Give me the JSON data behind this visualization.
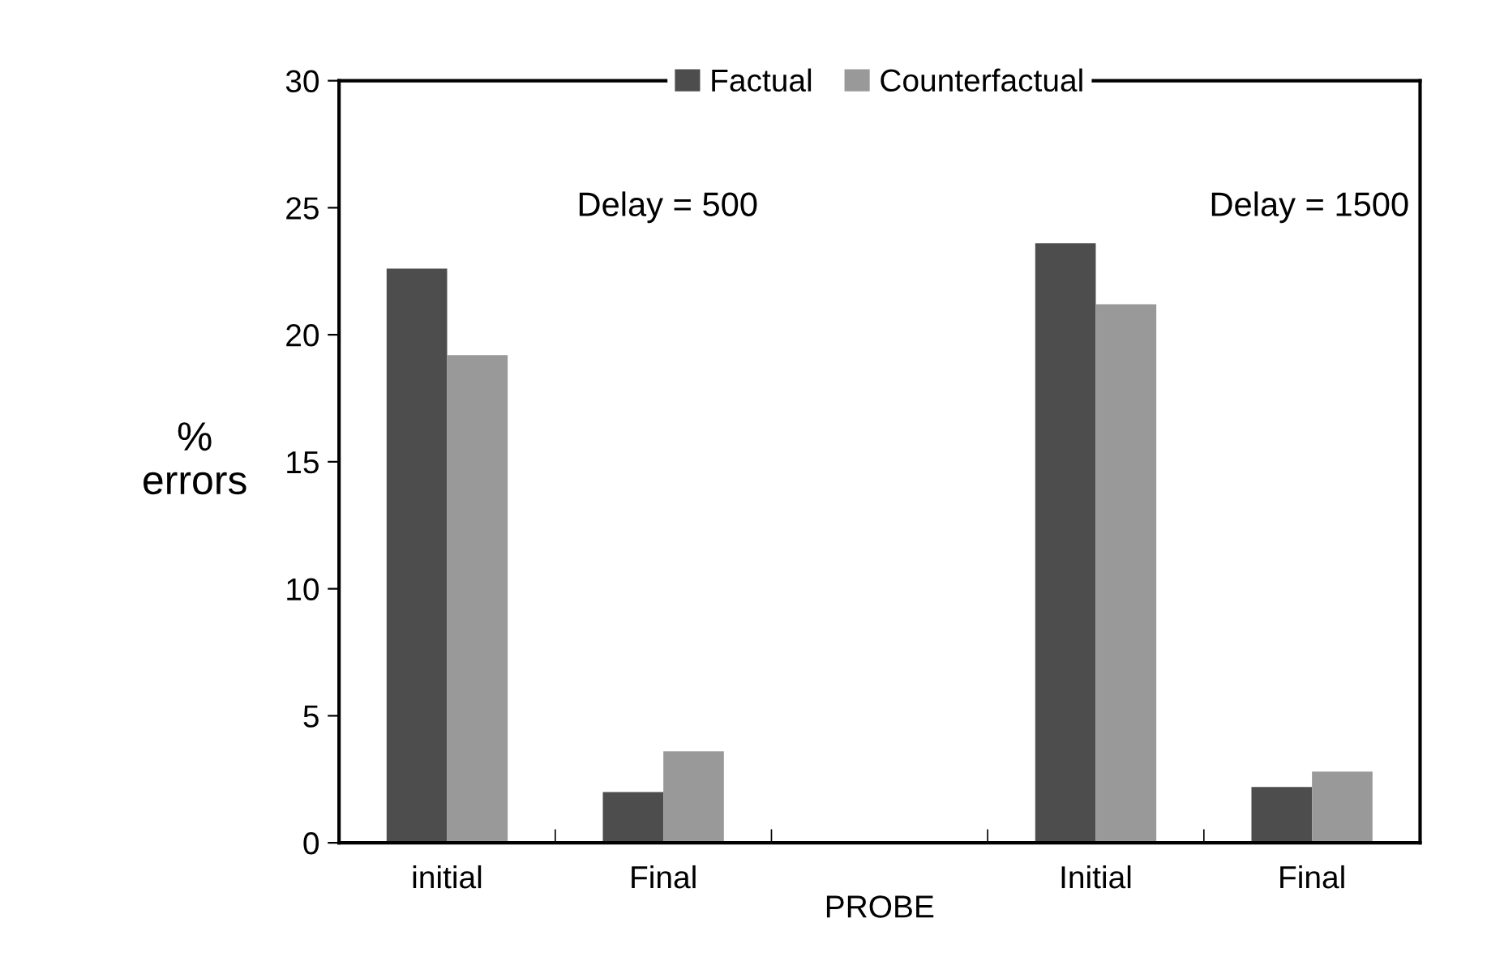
{
  "chart_data": {
    "type": "bar",
    "xlabel": "PROBE",
    "ylabel": "%\nerrors",
    "categories": [
      "initial",
      "Final",
      null,
      "Initial",
      "Final"
    ],
    "series": [
      {
        "name": "Factual",
        "color": "#4d4d4d",
        "values": [
          22.6,
          2.0,
          null,
          23.6,
          2.2
        ]
      },
      {
        "name": "Counterfactual",
        "color": "#999999",
        "values": [
          19.2,
          3.6,
          null,
          21.2,
          2.8
        ]
      }
    ],
    "ylim": [
      0,
      30
    ],
    "yticks": [
      0,
      5,
      10,
      15,
      20,
      25,
      30
    ],
    "grid": false,
    "legend": "top",
    "annotations": [
      "Delay = 500",
      "Delay = 1500"
    ]
  }
}
